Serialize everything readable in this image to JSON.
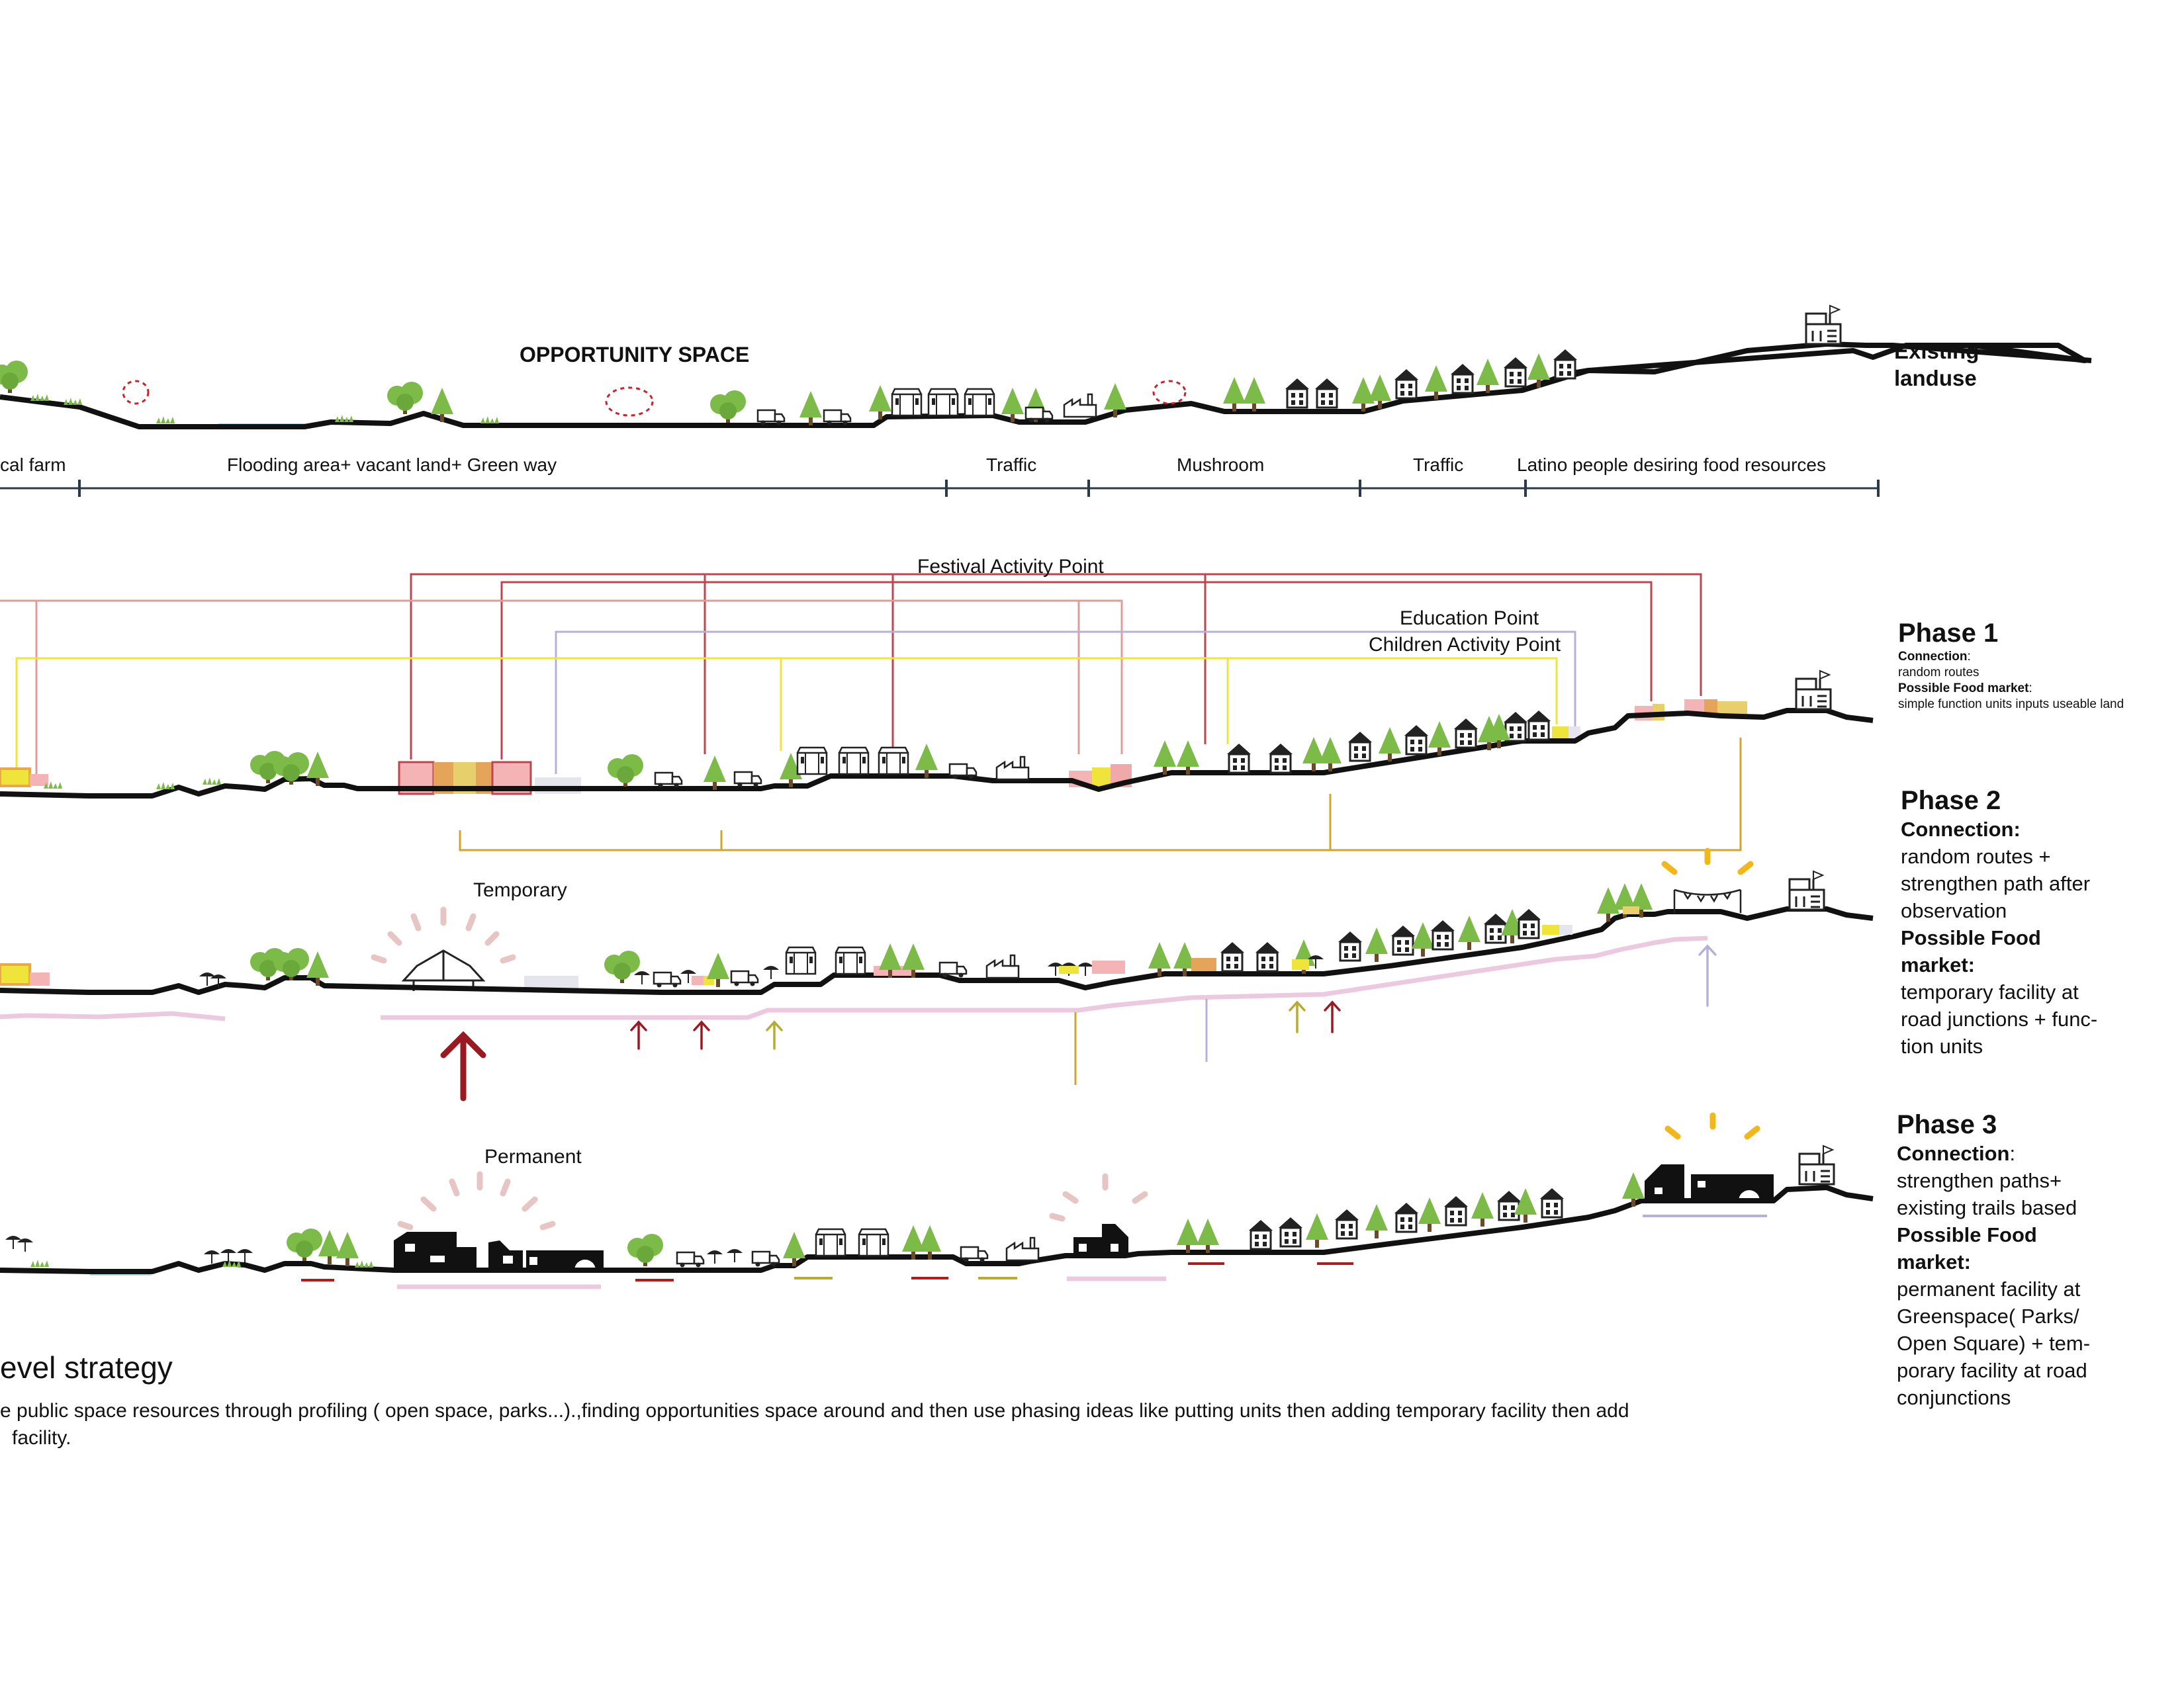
{
  "sections": {
    "opportunity_title": "OPPORTUNITY SPACE",
    "existing_label": "Existing landuse",
    "zone_labels": [
      "cal farm",
      "Flooding area+ vacant land+ Green way",
      "Traffic",
      "Mushroom",
      "Traffic",
      "Latino people desiring food resources"
    ],
    "point_labels": {
      "festival": "Festival Activity Point",
      "education": "Education Point",
      "children": "Children Activity Point"
    },
    "temporary_label": "Temporary",
    "permanent_label": "Permanent"
  },
  "phases": [
    {
      "title": "Phase 1",
      "connection_label": "Connection",
      "connection_suffix": ":",
      "connection_text": "random routes",
      "market_label": "Possible Food market",
      "market_suffix": ":",
      "market_text": "simple function units inputs useable land"
    },
    {
      "title": "Phase 2",
      "connection_label": "Connection:",
      "connection_text": "random routes + strengthen path after observation",
      "market_label": "Possible Food market:",
      "market_text": "temporary facility at road junctions + func- tion units"
    },
    {
      "title": "Phase 3",
      "connection_label": "Connection",
      "connection_suffix": ":",
      "connection_text": "strengthen paths+ existing trails based",
      "market_label": "Possible Food market:",
      "market_text": "permanent facility at Greenspace( Parks/ Open Square) + tem- porary facility at road conjunctions"
    }
  ],
  "strategy": {
    "title": "evel strategy",
    "line1": "e public space resources through profiling  ( open space, parks...).,finding opportunities space around and then use phasing ideas like putting units then adding temporary facility then add",
    "line2": "facility."
  },
  "colors": {
    "ground": "#111111",
    "festival": "#c0444d",
    "festival_light": "#e59a9a",
    "education": "#b8b0d8",
    "children": "#efe53a",
    "connection": "#d1a52a",
    "tree": "#7dbb48",
    "water": "#a8dbe8",
    "path": "#ecc9df",
    "dark_red": "#9b1a22",
    "olive": "#b6ad2e",
    "sun_yellow": "#f1b81c",
    "sun_pink": "#e8c5c5"
  }
}
